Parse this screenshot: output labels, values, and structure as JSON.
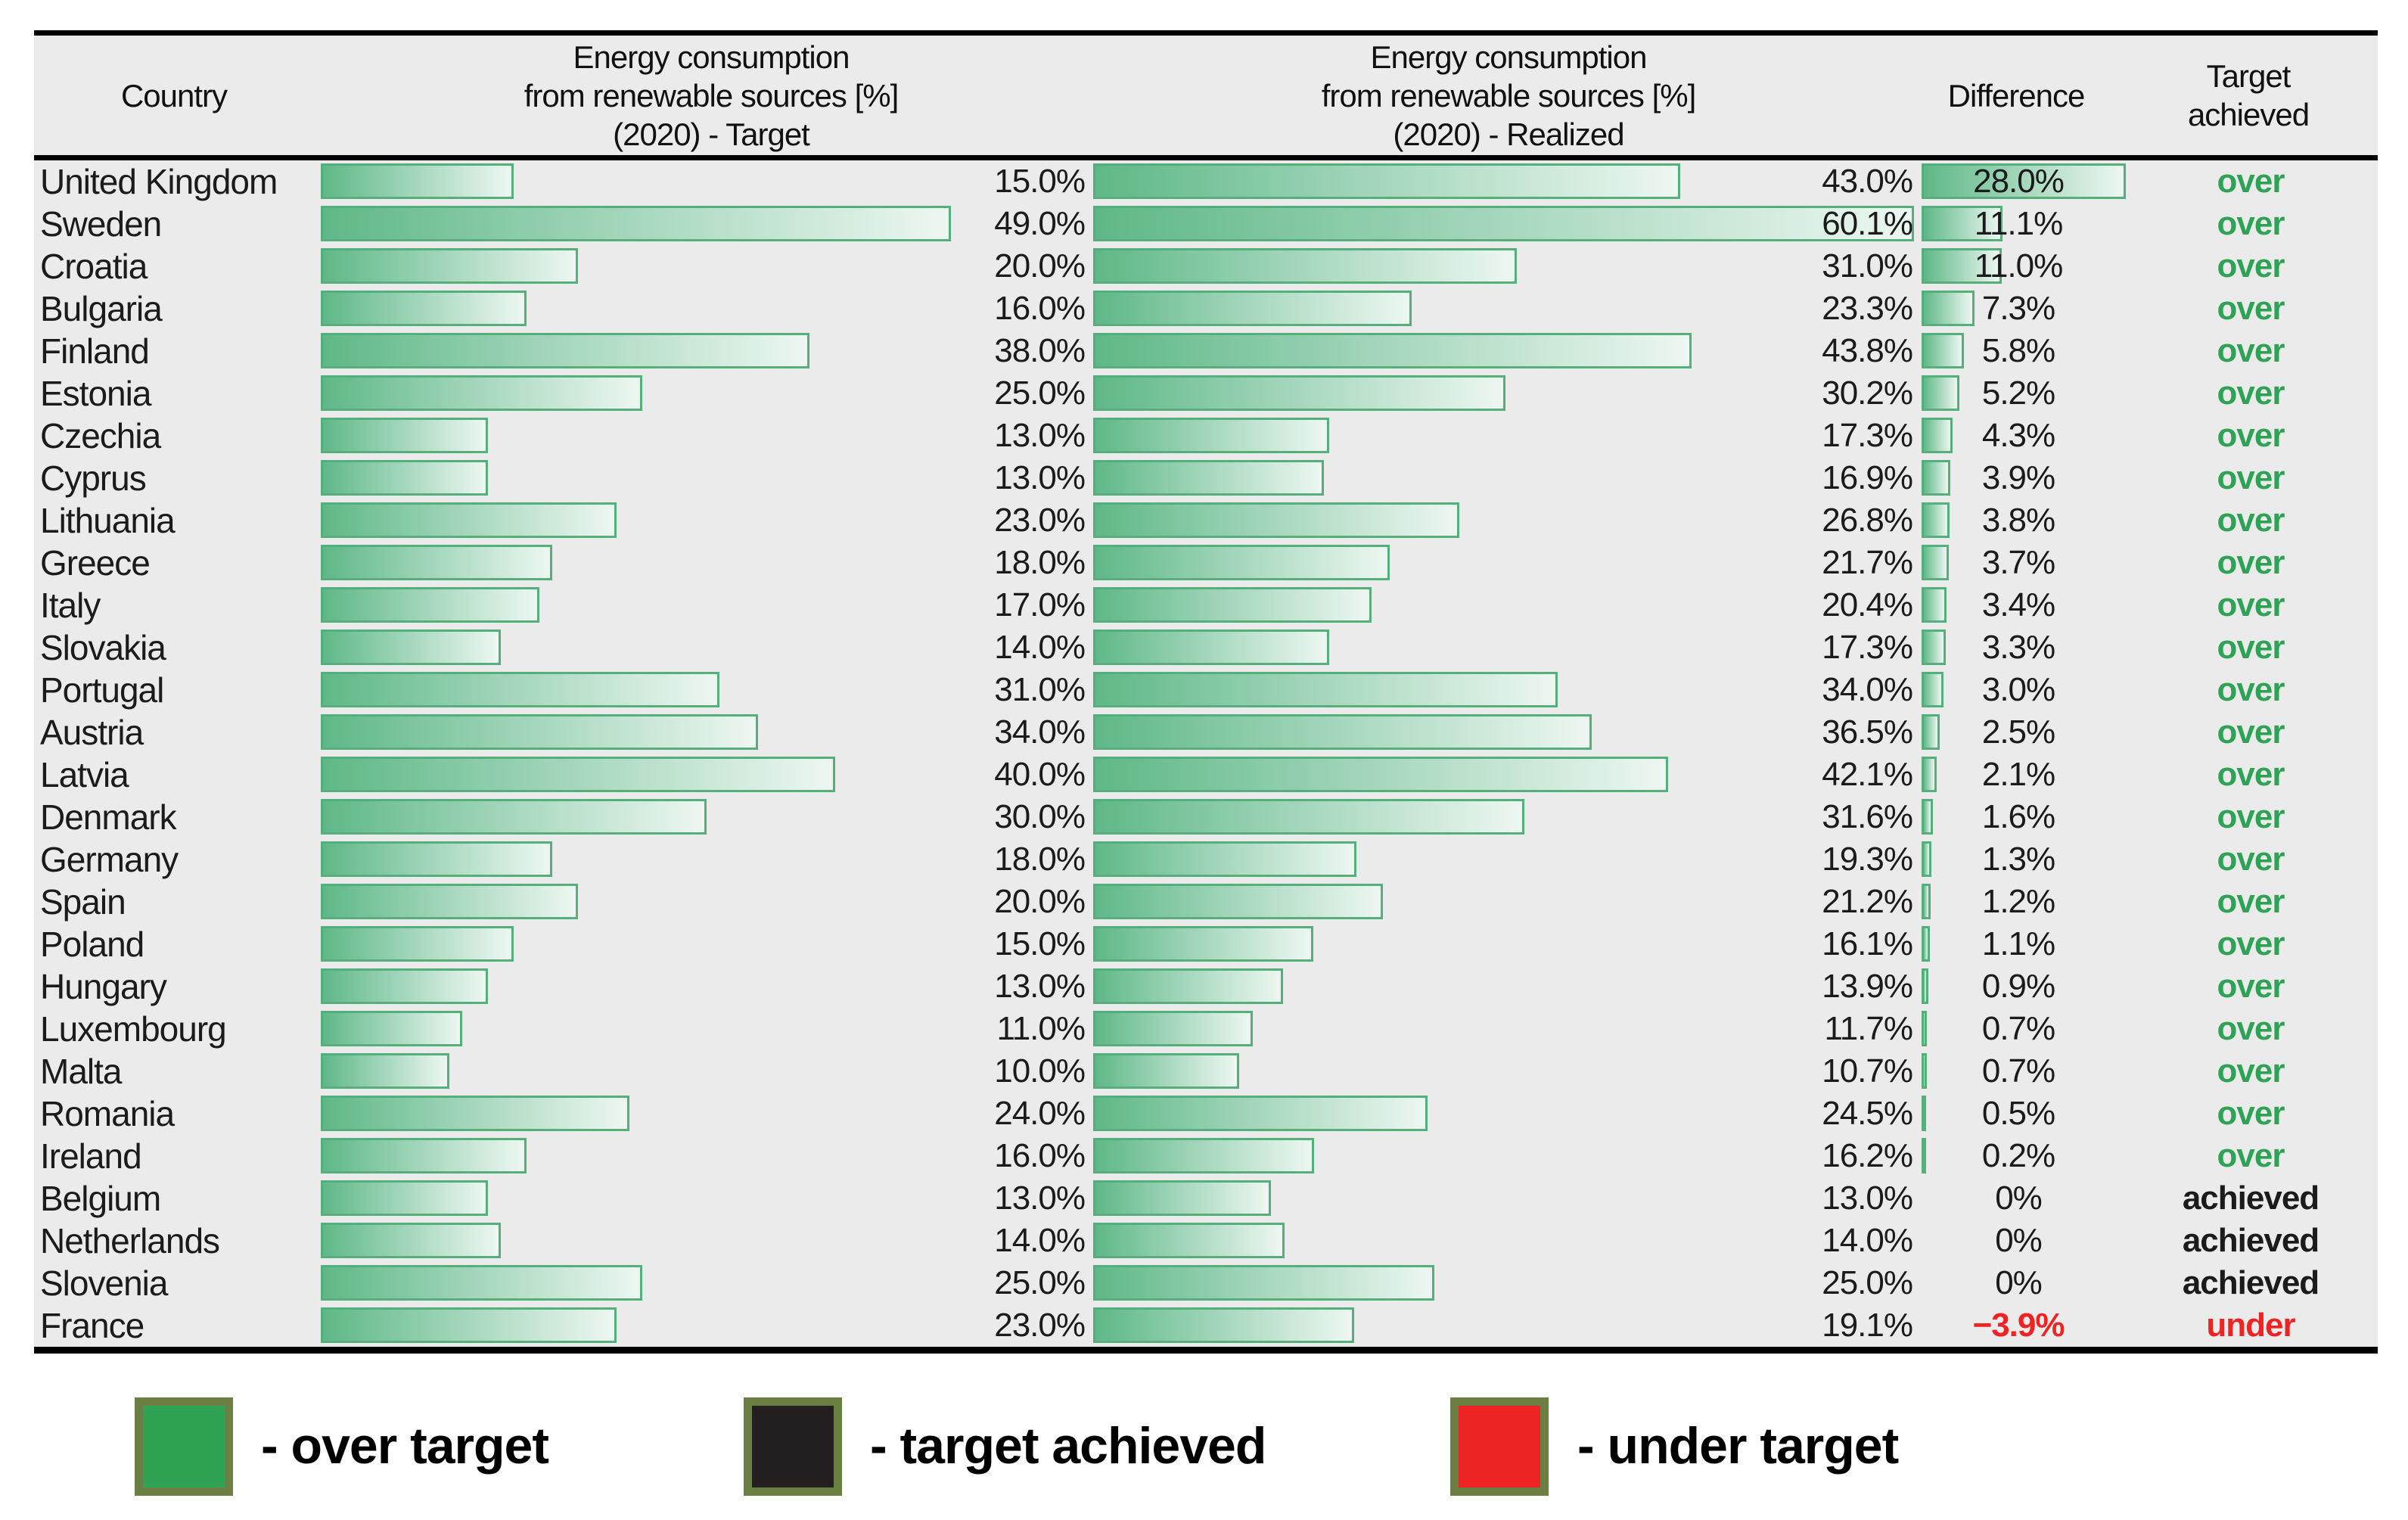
{
  "header": {
    "country": "Country",
    "target_col": [
      "Energy consumption",
      "from renewable sources [%]",
      "(2020) - Target"
    ],
    "realized_col": [
      "Energy consumption",
      "from renewable sources [%]",
      "(2020) - Realized"
    ],
    "difference": "Difference",
    "achieved_line1": "Target",
    "achieved_line2": "achieved"
  },
  "colors": {
    "table_bg": "#ebebec",
    "border_line": "#000000",
    "row_text": "#1b1b1b",
    "bar_fill_start": "#5fb888",
    "bar_fill_end": "#edf7f1",
    "bar_border": "#54af7d",
    "status_over": "#2fa355",
    "status_achieved": "#1b1b1b",
    "status_under": "#ee2424",
    "negative_value": "#ee2424",
    "legend_swatch_border": "#6b7f42",
    "legend_green": "#2fa254",
    "legend_black": "#231f20",
    "legend_red": "#ee2424"
  },
  "chart_data": {
    "type": "bar",
    "orientation": "horizontal",
    "unit": "%",
    "series": [
      "Target (2020)",
      "Realized (2020)",
      "Difference"
    ],
    "rows": [
      {
        "country": "United Kingdom",
        "target": 15.0,
        "target_label": "15.0%",
        "realized": 43.0,
        "realized_label": "43.0%",
        "diff": 28.0,
        "diff_label": "28.0%",
        "status": "over"
      },
      {
        "country": "Sweden",
        "target": 49.0,
        "target_label": "49.0%",
        "realized": 60.1,
        "realized_label": "60.1%",
        "diff": 11.1,
        "diff_label": "11.1%",
        "status": "over"
      },
      {
        "country": "Croatia",
        "target": 20.0,
        "target_label": "20.0%",
        "realized": 31.0,
        "realized_label": "31.0%",
        "diff": 11.0,
        "diff_label": "11.0%",
        "status": "over"
      },
      {
        "country": "Bulgaria",
        "target": 16.0,
        "target_label": "16.0%",
        "realized": 23.3,
        "realized_label": "23.3%",
        "diff": 7.3,
        "diff_label": "7.3%",
        "status": "over"
      },
      {
        "country": "Finland",
        "target": 38.0,
        "target_label": "38.0%",
        "realized": 43.8,
        "realized_label": "43.8%",
        "diff": 5.8,
        "diff_label": "5.8%",
        "status": "over"
      },
      {
        "country": "Estonia",
        "target": 25.0,
        "target_label": "25.0%",
        "realized": 30.2,
        "realized_label": "30.2%",
        "diff": 5.2,
        "diff_label": "5.2%",
        "status": "over"
      },
      {
        "country": "Czechia",
        "target": 13.0,
        "target_label": "13.0%",
        "realized": 17.3,
        "realized_label": "17.3%",
        "diff": 4.3,
        "diff_label": "4.3%",
        "status": "over"
      },
      {
        "country": "Cyprus",
        "target": 13.0,
        "target_label": "13.0%",
        "realized": 16.9,
        "realized_label": "16.9%",
        "diff": 3.9,
        "diff_label": "3.9%",
        "status": "over"
      },
      {
        "country": "Lithuania",
        "target": 23.0,
        "target_label": "23.0%",
        "realized": 26.8,
        "realized_label": "26.8%",
        "diff": 3.8,
        "diff_label": "3.8%",
        "status": "over"
      },
      {
        "country": "Greece",
        "target": 18.0,
        "target_label": "18.0%",
        "realized": 21.7,
        "realized_label": "21.7%",
        "diff": 3.7,
        "diff_label": "3.7%",
        "status": "over"
      },
      {
        "country": "Italy",
        "target": 17.0,
        "target_label": "17.0%",
        "realized": 20.4,
        "realized_label": "20.4%",
        "diff": 3.4,
        "diff_label": "3.4%",
        "status": "over"
      },
      {
        "country": "Slovakia",
        "target": 14.0,
        "target_label": "14.0%",
        "realized": 17.3,
        "realized_label": "17.3%",
        "diff": 3.3,
        "diff_label": "3.3%",
        "status": "over"
      },
      {
        "country": "Portugal",
        "target": 31.0,
        "target_label": "31.0%",
        "realized": 34.0,
        "realized_label": "34.0%",
        "diff": 3.0,
        "diff_label": "3.0%",
        "status": "over"
      },
      {
        "country": "Austria",
        "target": 34.0,
        "target_label": "34.0%",
        "realized": 36.5,
        "realized_label": "36.5%",
        "diff": 2.5,
        "diff_label": "2.5%",
        "status": "over"
      },
      {
        "country": "Latvia",
        "target": 40.0,
        "target_label": "40.0%",
        "realized": 42.1,
        "realized_label": "42.1%",
        "diff": 2.1,
        "diff_label": "2.1%",
        "status": "over"
      },
      {
        "country": "Denmark",
        "target": 30.0,
        "target_label": "30.0%",
        "realized": 31.6,
        "realized_label": "31.6%",
        "diff": 1.6,
        "diff_label": "1.6%",
        "status": "over"
      },
      {
        "country": "Germany",
        "target": 18.0,
        "target_label": "18.0%",
        "realized": 19.3,
        "realized_label": "19.3%",
        "diff": 1.3,
        "diff_label": "1.3%",
        "status": "over"
      },
      {
        "country": "Spain",
        "target": 20.0,
        "target_label": "20.0%",
        "realized": 21.2,
        "realized_label": "21.2%",
        "diff": 1.2,
        "diff_label": "1.2%",
        "status": "over"
      },
      {
        "country": "Poland",
        "target": 15.0,
        "target_label": "15.0%",
        "realized": 16.1,
        "realized_label": "16.1%",
        "diff": 1.1,
        "diff_label": "1.1%",
        "status": "over"
      },
      {
        "country": "Hungary",
        "target": 13.0,
        "target_label": "13.0%",
        "realized": 13.9,
        "realized_label": "13.9%",
        "diff": 0.9,
        "diff_label": "0.9%",
        "status": "over"
      },
      {
        "country": "Luxembourg",
        "target": 11.0,
        "target_label": "11.0%",
        "realized": 11.7,
        "realized_label": "11.7%",
        "diff": 0.7,
        "diff_label": "0.7%",
        "status": "over"
      },
      {
        "country": "Malta",
        "target": 10.0,
        "target_label": "10.0%",
        "realized": 10.7,
        "realized_label": "10.7%",
        "diff": 0.7,
        "diff_label": "0.7%",
        "status": "over"
      },
      {
        "country": "Romania",
        "target": 24.0,
        "target_label": "24.0%",
        "realized": 24.5,
        "realized_label": "24.5%",
        "diff": 0.5,
        "diff_label": "0.5%",
        "status": "over"
      },
      {
        "country": "Ireland",
        "target": 16.0,
        "target_label": "16.0%",
        "realized": 16.2,
        "realized_label": "16.2%",
        "diff": 0.2,
        "diff_label": "0.2%",
        "status": "over"
      },
      {
        "country": "Belgium",
        "target": 13.0,
        "target_label": "13.0%",
        "realized": 13.0,
        "realized_label": "13.0%",
        "diff": 0,
        "diff_label": "0%",
        "status": "achieved"
      },
      {
        "country": "Netherlands",
        "target": 14.0,
        "target_label": "14.0%",
        "realized": 14.0,
        "realized_label": "14.0%",
        "diff": 0,
        "diff_label": "0%",
        "status": "achieved"
      },
      {
        "country": "Slovenia",
        "target": 25.0,
        "target_label": "25.0%",
        "realized": 25.0,
        "realized_label": "25.0%",
        "diff": 0,
        "diff_label": "0%",
        "status": "achieved"
      },
      {
        "country": "France",
        "target": 23.0,
        "target_label": "23.0%",
        "realized": 19.1,
        "realized_label": "19.1%",
        "diff": -3.9,
        "diff_label": "−3.9%",
        "status": "under"
      }
    ]
  },
  "legend": [
    {
      "label": "- over target",
      "swatch": "green"
    },
    {
      "label": "- target achieved",
      "swatch": "black"
    },
    {
      "label": "- under target",
      "swatch": "red"
    }
  ]
}
